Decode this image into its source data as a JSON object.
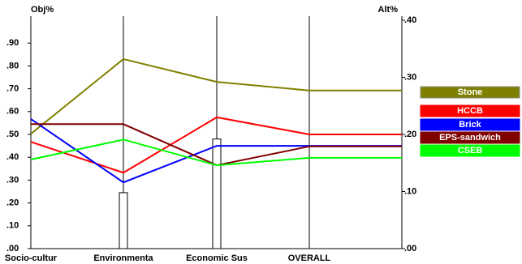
{
  "chart_data": {
    "type": "line",
    "y_label": "Obj%",
    "y2_label": "Alt%",
    "categories": [
      "Socio-cultur",
      "Environmenta",
      "Economic Sus",
      "OVERALL"
    ],
    "bar_values": [
      null,
      0.245,
      0.48,
      null
    ],
    "ylim": [
      0,
      1.0
    ],
    "yticks": [
      {
        "value": 0,
        "label": ".00"
      },
      {
        "value": 0.1,
        "label": ".10"
      },
      {
        "value": 0.2,
        "label": ".20"
      },
      {
        "value": 0.3,
        "label": ".30"
      },
      {
        "value": 0.4,
        "label": ".40"
      },
      {
        "value": 0.5,
        "label": ".50"
      },
      {
        "value": 0.6,
        "label": ".60"
      },
      {
        "value": 0.7,
        "label": ".70"
      },
      {
        "value": 0.8,
        "label": ".80"
      },
      {
        "value": 0.9,
        "label": ".90"
      }
    ],
    "y2lim": [
      0,
      0.4
    ],
    "y2ticks": [
      {
        "value": 0,
        "label": ".00"
      },
      {
        "value": 0.1,
        "label": ".10"
      },
      {
        "value": 0.2,
        "label": ".20"
      },
      {
        "value": 0.3,
        "label": ".30"
      },
      {
        "value": 0.4,
        "label": ".40"
      }
    ],
    "series": [
      {
        "name": "Stone",
        "color": "#808000",
        "axis": "y2",
        "values": [
          0.201,
          0.332,
          0.292,
          0.277
        ]
      },
      {
        "name": "HCCB",
        "color": "#ff0000",
        "axis": "y2",
        "values": [
          0.187,
          0.133,
          0.23,
          0.2
        ]
      },
      {
        "name": "Brick",
        "color": "#0000ff",
        "axis": "y2",
        "values": [
          0.227,
          0.116,
          0.18,
          0.18
        ]
      },
      {
        "name": "EPS-sandwich",
        "color": "#800000",
        "axis": "y2",
        "values": [
          0.218,
          0.218,
          0.146,
          0.179
        ]
      },
      {
        "name": "CSEB",
        "color": "#00ff00",
        "axis": "y2",
        "values": [
          0.156,
          0.191,
          0.146,
          0.159
        ]
      }
    ]
  }
}
